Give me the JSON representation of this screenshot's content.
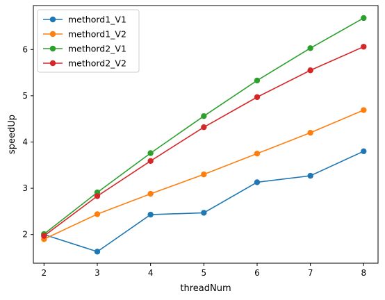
{
  "chart_data": {
    "type": "line",
    "title": "",
    "xlabel": "threadNum",
    "ylabel": "speedUp",
    "x": [
      2,
      3,
      4,
      5,
      6,
      7,
      8
    ],
    "xlim": [
      1.8,
      8.27
    ],
    "ylim": [
      1.38,
      6.95
    ],
    "xticks": [
      2,
      3,
      4,
      5,
      6,
      7,
      8
    ],
    "yticks": [
      2,
      3,
      4,
      5,
      6
    ],
    "grid": false,
    "legend_position": "top-left",
    "series": [
      {
        "name": "methord1_V1",
        "color": "#1f77b4",
        "values": [
          2.0,
          1.63,
          2.43,
          2.47,
          3.13,
          3.27,
          3.8
        ]
      },
      {
        "name": "methord1_V2",
        "color": "#ff7f0e",
        "values": [
          1.9,
          2.44,
          2.88,
          3.3,
          3.75,
          4.2,
          4.69
        ]
      },
      {
        "name": "methord2_V1",
        "color": "#2ca02c",
        "values": [
          2.01,
          2.91,
          3.76,
          4.56,
          5.33,
          6.03,
          6.68
        ]
      },
      {
        "name": "methord2_V2",
        "color": "#d62728",
        "values": [
          1.97,
          2.83,
          3.59,
          4.32,
          4.97,
          5.55,
          6.06
        ]
      }
    ]
  }
}
